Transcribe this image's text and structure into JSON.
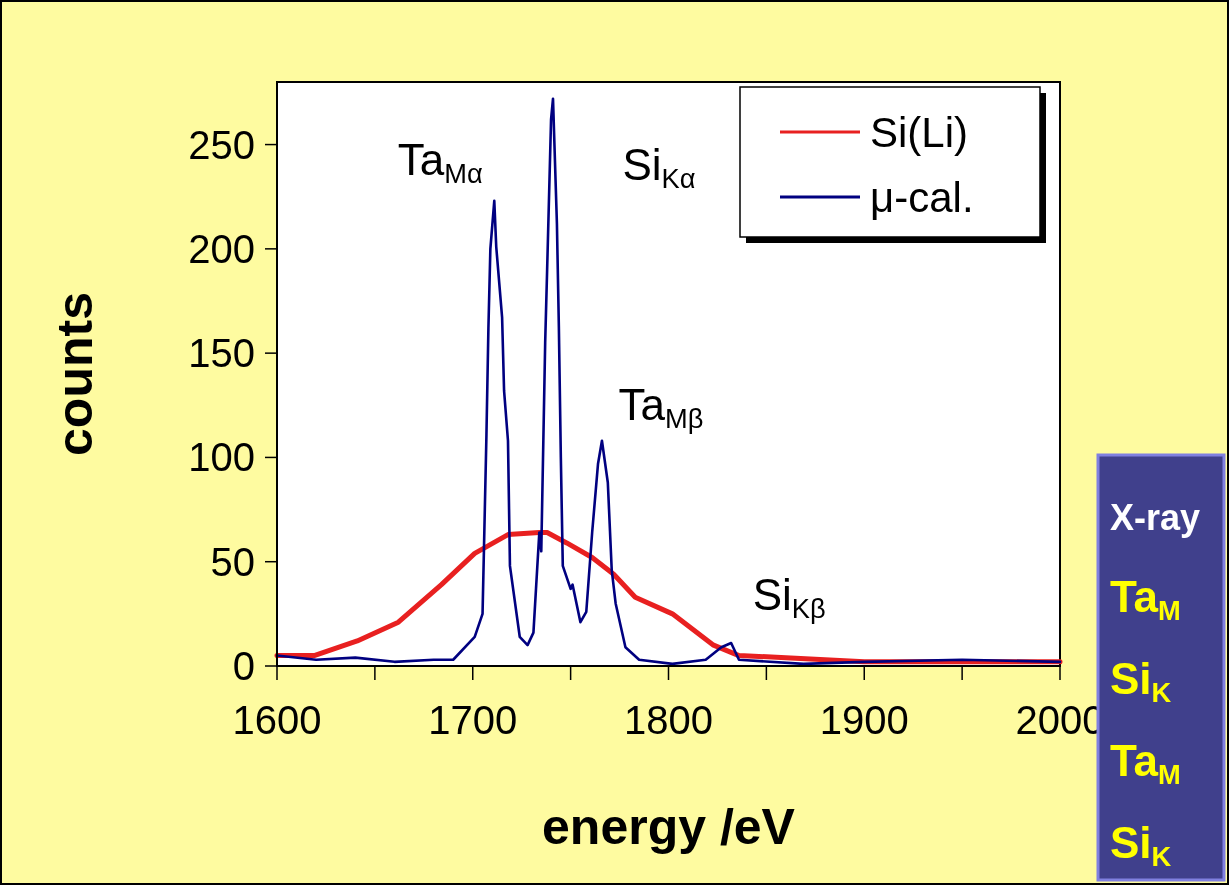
{
  "chart_data": {
    "type": "line",
    "xlabel": "energy /eV",
    "ylabel": "counts",
    "xlim": [
      1600,
      2000
    ],
    "ylim": [
      0,
      280
    ],
    "xticks": [
      1600,
      {
        "value": 1650,
        "label": null
      },
      1700,
      {
        "value": 1750,
        "label": null
      },
      1800,
      {
        "value": 1850,
        "label": null
      },
      1900,
      {
        "value": 1950,
        "label": null
      },
      2000
    ],
    "yticks": [
      0,
      50,
      100,
      150,
      200,
      250
    ],
    "grid": false,
    "legend": "top right",
    "line_style": "solid",
    "marker": "none",
    "series": [
      {
        "name": "Si(Li)",
        "color": "#e82020",
        "x": [
          1600,
          1619,
          1641,
          1662,
          1684,
          1701,
          1718,
          1734,
          1738,
          1748,
          1761,
          1772,
          1783,
          1802,
          1823,
          1836,
          1860,
          1900,
          2000
        ],
        "values": [
          5,
          5,
          12,
          21,
          39,
          54,
          63,
          64,
          64,
          59,
          52,
          44,
          33,
          25,
          10,
          5,
          4,
          2,
          2
        ]
      },
      {
        "name": "μ-cal.",
        "color": "#000080",
        "x": [
          1600,
          1620,
          1640,
          1660,
          1680,
          1690,
          1701,
          1705,
          1707,
          1708,
          1709,
          1711,
          1712,
          1715,
          1716,
          1718,
          1719,
          1724,
          1728,
          1731,
          1734,
          1735,
          1737,
          1738,
          1740,
          1741,
          1743,
          1744,
          1745,
          1746,
          1750,
          1751,
          1755,
          1758,
          1761,
          1764,
          1766,
          1769,
          1771,
          1773,
          1778,
          1785,
          1802,
          1819,
          1827,
          1832,
          1836,
          1869,
          1900,
          1950,
          2000
        ],
        "values": [
          5,
          3,
          4,
          2,
          3,
          3,
          14,
          25,
          111,
          162,
          200,
          223,
          201,
          167,
          132,
          108,
          48,
          14,
          10,
          16,
          64,
          55,
          155,
          190,
          262,
          272,
          212,
          162,
          100,
          48,
          37,
          39,
          21,
          26,
          64,
          97,
          108,
          88,
          46,
          30,
          9,
          3,
          1,
          3,
          9,
          11,
          3,
          1,
          2,
          3,
          2
        ]
      }
    ],
    "annotations": [
      {
        "text": "Ta$_{Mα}$",
        "x": 1711,
        "y": 223
      },
      {
        "text": "Si$_{Kα}$",
        "x": 1741,
        "y": 272
      },
      {
        "text": "Ta$_{Mβ}$",
        "x": 1766,
        "y": 108
      },
      {
        "text": "Si$_{Kβ}$",
        "x": 1832,
        "y": 11
      },
      "X-ray",
      "Ta$_{M}$",
      "Si$_{K}$",
      "Ta$_{M}$",
      "Si$_{K}$"
    ]
  }
}
